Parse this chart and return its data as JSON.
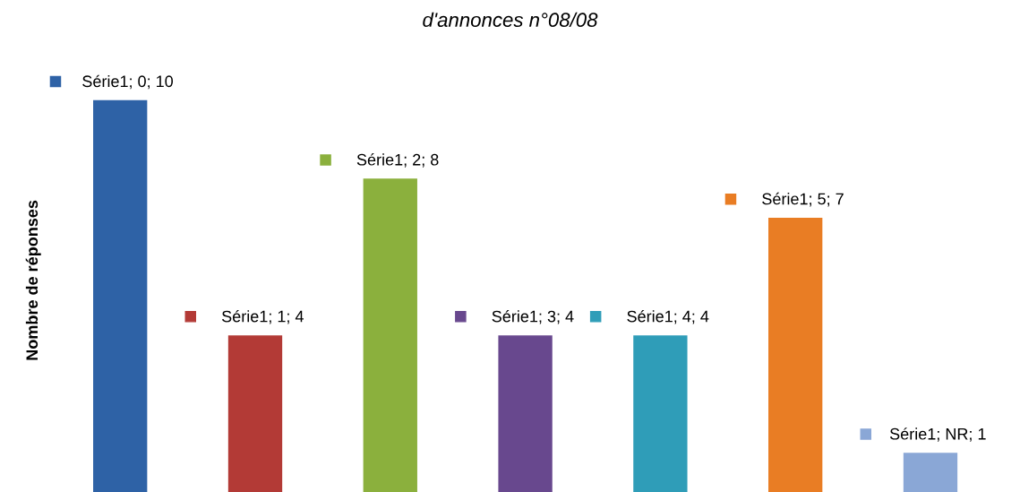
{
  "chart_data": {
    "type": "bar",
    "title": "d'annonces n°08/08",
    "ylabel": "Nombre de réponses",
    "categories": [
      null,
      null,
      null,
      null,
      null,
      null,
      null
    ],
    "values": [
      10,
      4,
      8,
      4,
      4,
      7,
      1
    ],
    "colors": [
      "#2e62a6",
      "#b33a36",
      "#8bb03d",
      "#68488e",
      "#2f9db8",
      "#e97d24",
      "#8aa7d6"
    ],
    "value_labels": [
      "Série1; 0; 10",
      "Série1; 1; 4",
      "Série1; 2; 8",
      "Série1; 3; 4",
      "Série1; 4; 4",
      "Série1; 5; 7",
      "Série1; NR; 1"
    ],
    "grid": false,
    "legend": false
  }
}
